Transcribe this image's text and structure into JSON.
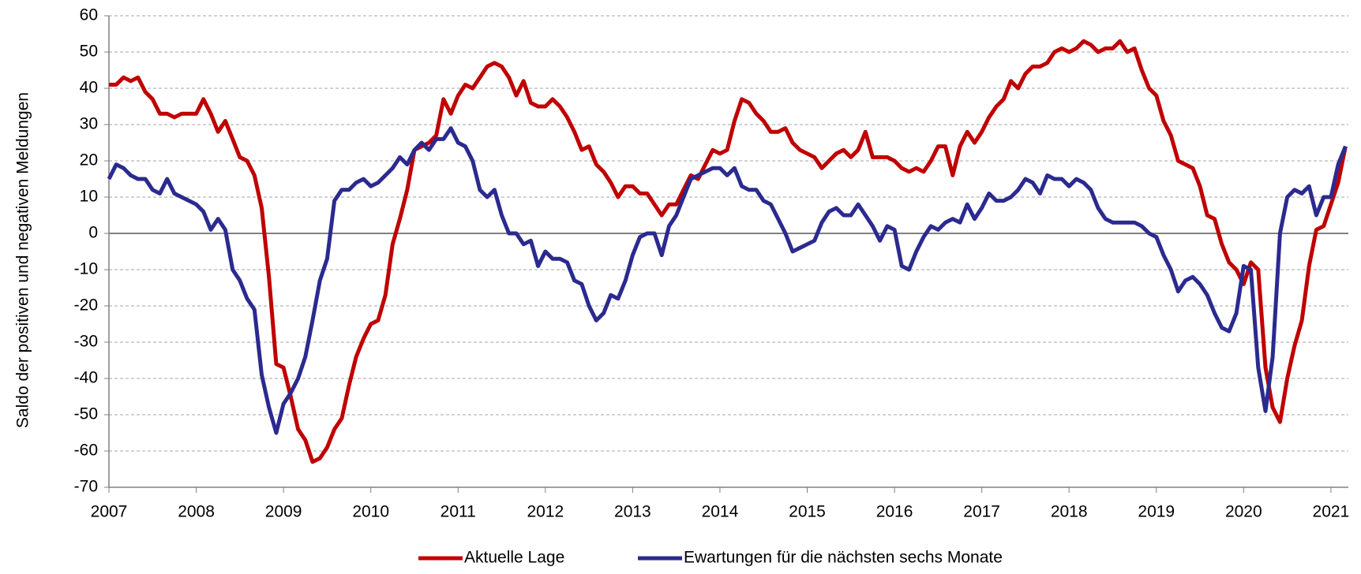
{
  "chart_data": {
    "type": "line",
    "y_label": "Saldo der positiven und negativen Meldungen",
    "x": [
      2007,
      2007.083,
      2007.167,
      2007.25,
      2007.333,
      2007.417,
      2007.5,
      2007.583,
      2007.667,
      2007.75,
      2007.833,
      2007.917,
      2008,
      2008.083,
      2008.167,
      2008.25,
      2008.333,
      2008.417,
      2008.5,
      2008.583,
      2008.667,
      2008.75,
      2008.833,
      2008.917,
      2009,
      2009.083,
      2009.167,
      2009.25,
      2009.333,
      2009.417,
      2009.5,
      2009.583,
      2009.667,
      2009.75,
      2009.833,
      2009.917,
      2010,
      2010.083,
      2010.167,
      2010.25,
      2010.333,
      2010.417,
      2010.5,
      2010.583,
      2010.667,
      2010.75,
      2010.833,
      2010.917,
      2011,
      2011.083,
      2011.167,
      2011.25,
      2011.333,
      2011.417,
      2011.5,
      2011.583,
      2011.667,
      2011.75,
      2011.833,
      2011.917,
      2012,
      2012.083,
      2012.167,
      2012.25,
      2012.333,
      2012.417,
      2012.5,
      2012.583,
      2012.667,
      2012.75,
      2012.833,
      2012.917,
      2013,
      2013.083,
      2013.167,
      2013.25,
      2013.333,
      2013.417,
      2013.5,
      2013.583,
      2013.667,
      2013.75,
      2013.833,
      2013.917,
      2014,
      2014.083,
      2014.167,
      2014.25,
      2014.333,
      2014.417,
      2014.5,
      2014.583,
      2014.667,
      2014.75,
      2014.833,
      2014.917,
      2015,
      2015.083,
      2015.167,
      2015.25,
      2015.333,
      2015.417,
      2015.5,
      2015.583,
      2015.667,
      2015.75,
      2015.833,
      2015.917,
      2016,
      2016.083,
      2016.167,
      2016.25,
      2016.333,
      2016.417,
      2016.5,
      2016.583,
      2016.667,
      2016.75,
      2016.833,
      2016.917,
      2017,
      2017.083,
      2017.167,
      2017.25,
      2017.333,
      2017.417,
      2017.5,
      2017.583,
      2017.667,
      2017.75,
      2017.833,
      2017.917,
      2018,
      2018.083,
      2018.167,
      2018.25,
      2018.333,
      2018.417,
      2018.5,
      2018.583,
      2018.667,
      2018.75,
      2018.833,
      2018.917,
      2019,
      2019.083,
      2019.167,
      2019.25,
      2019.333,
      2019.417,
      2019.5,
      2019.583,
      2019.667,
      2019.75,
      2019.833,
      2019.917,
      2020,
      2020.083,
      2020.167,
      2020.25,
      2020.333,
      2020.417,
      2020.5,
      2020.583,
      2020.667,
      2020.75,
      2020.833,
      2020.917,
      2021,
      2021.083,
      2021.167
    ],
    "series": [
      {
        "name": "Aktuelle Lage",
        "color": "#c00000",
        "values": [
          41,
          41,
          43,
          42,
          43,
          39,
          37,
          33,
          33,
          32,
          33,
          33,
          33,
          37,
          33,
          28,
          31,
          26,
          21,
          20,
          16,
          7,
          -12,
          -36,
          -37,
          -45,
          -54,
          -57,
          -63,
          -62,
          -59,
          -54,
          -51,
          -42,
          -34,
          -29,
          -25,
          -24,
          -17,
          -3,
          4,
          12,
          23,
          24,
          25,
          27,
          37,
          33,
          38,
          41,
          40,
          43,
          46,
          47,
          46,
          43,
          38,
          42,
          36,
          35,
          35,
          37,
          35,
          32,
          28,
          23,
          24,
          19,
          17,
          14,
          10,
          13,
          13,
          11,
          11,
          8,
          5,
          8,
          8,
          12,
          16,
          15,
          19,
          23,
          22,
          23,
          31,
          37,
          36,
          33,
          31,
          28,
          28,
          29,
          25,
          23,
          22,
          21,
          18,
          20,
          22,
          23,
          21,
          23,
          28,
          21,
          21,
          21,
          20,
          18,
          17,
          18,
          17,
          20,
          24,
          24,
          16,
          24,
          28,
          25,
          28,
          32,
          35,
          37,
          42,
          40,
          44,
          46,
          46,
          47,
          50,
          51,
          50,
          51,
          53,
          52,
          50,
          51,
          51,
          53,
          50,
          51,
          45,
          40,
          38,
          31,
          27,
          20,
          19,
          18,
          13,
          5,
          4,
          -3,
          -8,
          -10,
          -14,
          -8,
          -10,
          -37,
          -48,
          -52,
          -40,
          -31,
          -24,
          -9,
          1,
          2,
          8,
          14,
          24
        ]
      },
      {
        "name": "Ewartungen für die nächsten sechs Monate",
        "color": "#2b2a8f",
        "values": [
          15,
          19,
          18,
          16,
          15,
          15,
          12,
          11,
          15,
          11,
          10,
          9,
          8,
          6,
          1,
          4,
          1,
          -10,
          -13,
          -18,
          -21,
          -39,
          -48,
          -55,
          -47,
          -44,
          -40,
          -34,
          -24,
          -13,
          -7,
          9,
          12,
          12,
          14,
          15,
          13,
          14,
          16,
          18,
          21,
          19,
          23,
          25,
          23,
          26,
          26,
          29,
          25,
          24,
          20,
          12,
          10,
          12,
          5,
          0,
          0,
          -3,
          -2,
          -9,
          -5,
          -7,
          -7,
          -8,
          -13,
          -14,
          -20,
          -24,
          -22,
          -17,
          -18,
          -13,
          -6,
          -1,
          0,
          0,
          -6,
          2,
          5,
          10,
          15,
          16,
          17,
          18,
          18,
          16,
          18,
          13,
          12,
          12,
          9,
          8,
          4,
          0,
          -5,
          -4,
          -3,
          -2,
          3,
          6,
          7,
          5,
          5,
          8,
          5,
          2,
          -2,
          2,
          1,
          -9,
          -10,
          -5,
          -1,
          2,
          1,
          3,
          4,
          3,
          8,
          4,
          7,
          11,
          9,
          9,
          10,
          12,
          15,
          14,
          11,
          16,
          15,
          15,
          13,
          15,
          14,
          12,
          7,
          4,
          3,
          3,
          3,
          3,
          2,
          0,
          -1,
          -6,
          -10,
          -16,
          -13,
          -12,
          -14,
          -17,
          -22,
          -26,
          -27,
          -22,
          -9,
          -10,
          -37,
          -49,
          -34,
          0,
          10,
          12,
          11,
          13,
          5,
          10,
          10,
          19,
          24
        ]
      }
    ],
    "xlim": [
      2007,
      2021.2
    ],
    "xticks": [
      2007,
      2008,
      2009,
      2010,
      2011,
      2012,
      2013,
      2014,
      2015,
      2016,
      2017,
      2018,
      2019,
      2020,
      2021
    ],
    "ylim": [
      -70,
      60
    ],
    "yticks": [
      -70,
      -60,
      -50,
      -40,
      -30,
      -20,
      -10,
      0,
      10,
      20,
      30,
      40,
      50,
      60
    ],
    "grid": true,
    "legend": "bottom"
  }
}
